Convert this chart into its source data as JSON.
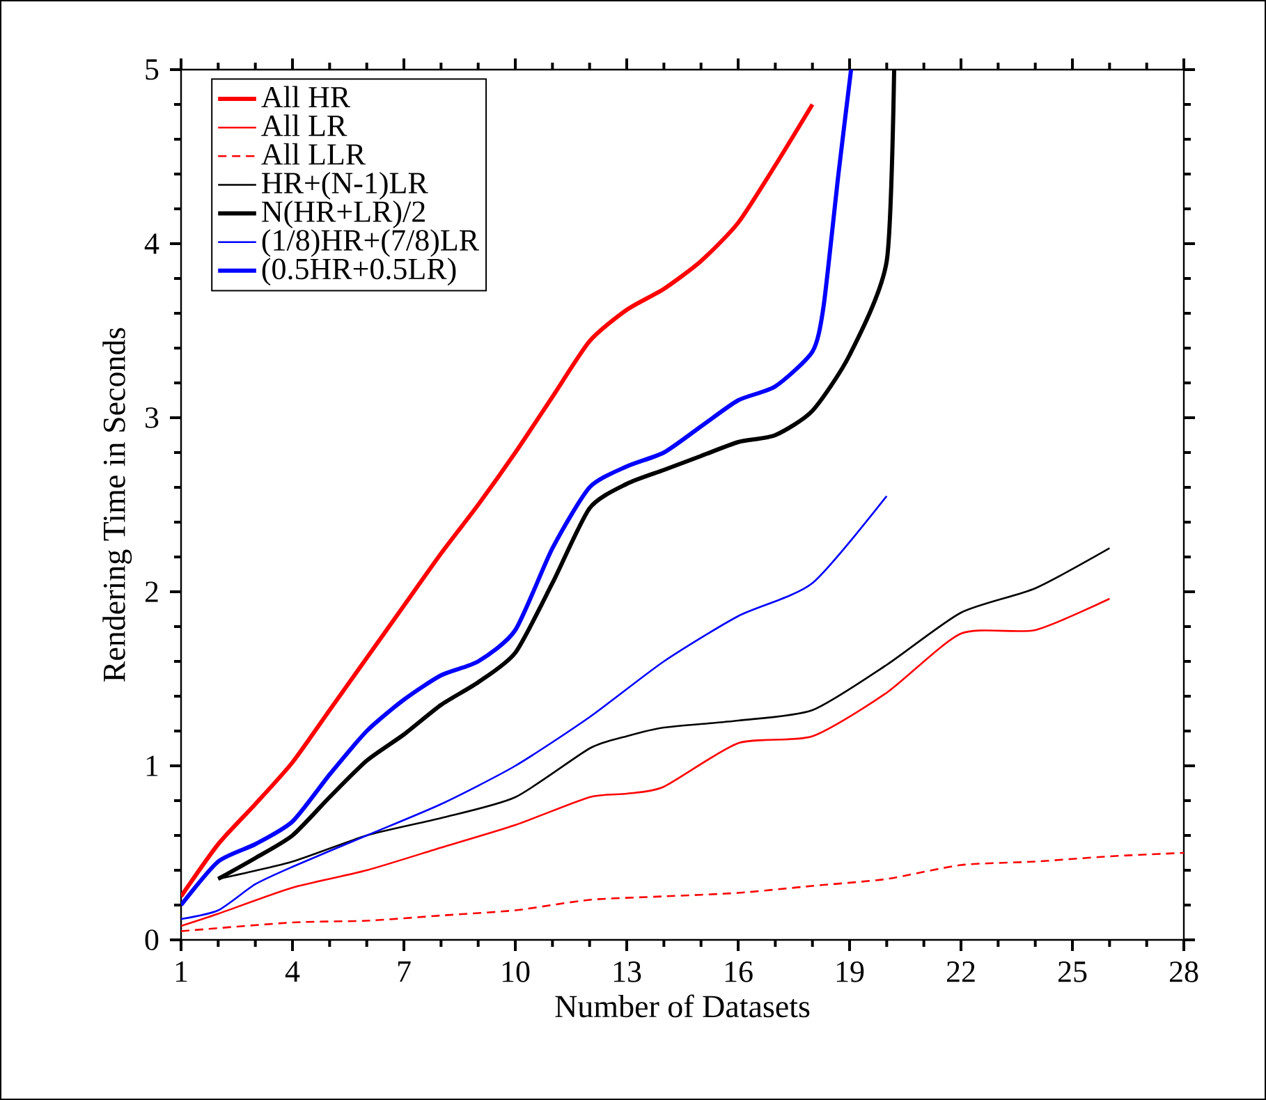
{
  "chart_data": {
    "type": "line",
    "xlabel": "Number of Datasets",
    "ylabel": "Rendering Time in Seconds",
    "xlim": [
      1,
      28
    ],
    "ylim": [
      0,
      5
    ],
    "xticks": [
      1,
      4,
      7,
      10,
      13,
      16,
      19,
      22,
      25,
      28
    ],
    "yticks": [
      0,
      1,
      2,
      3,
      4,
      5
    ],
    "legend": "top left",
    "series": [
      {
        "name": "All HR",
        "color": "#ff0000",
        "line_style": "solid",
        "x": [
          1,
          2,
          3,
          4,
          5,
          6,
          7,
          8,
          9,
          10,
          11,
          12,
          13,
          14,
          15,
          16,
          17,
          18
        ],
        "values": [
          0.25,
          0.55,
          0.78,
          1.02,
          1.32,
          1.62,
          1.92,
          2.22,
          2.5,
          2.8,
          3.12,
          3.44,
          3.62,
          3.74,
          3.9,
          4.12,
          4.45,
          4.8
        ]
      },
      {
        "name": "All LR",
        "color": "#ff0000",
        "line_style": "solid",
        "x": [
          1,
          2,
          4,
          6,
          8,
          10,
          12,
          13,
          14,
          16,
          18,
          20,
          22,
          24,
          26
        ],
        "values": [
          0.08,
          0.15,
          0.3,
          0.4,
          0.53,
          0.66,
          0.82,
          0.84,
          0.88,
          1.13,
          1.17,
          1.42,
          1.76,
          1.78,
          1.96
        ]
      },
      {
        "name": "All LLR",
        "color": "#ff0000",
        "line_style": "dashed",
        "x": [
          1,
          4,
          6,
          8,
          10,
          12,
          14,
          16,
          18,
          20,
          22,
          24,
          26,
          28
        ],
        "values": [
          0.05,
          0.1,
          0.11,
          0.14,
          0.17,
          0.23,
          0.25,
          0.27,
          0.31,
          0.35,
          0.43,
          0.45,
          0.48,
          0.5
        ]
      },
      {
        "name": "HR+(N-1)LR",
        "color": "#000000",
        "line_style": "solid",
        "x": [
          2,
          4,
          6,
          8,
          10,
          12,
          13,
          14,
          16,
          18,
          20,
          22,
          24,
          26
        ],
        "values": [
          0.35,
          0.45,
          0.6,
          0.7,
          0.82,
          1.1,
          1.17,
          1.22,
          1.26,
          1.32,
          1.58,
          1.88,
          2.02,
          2.25
        ]
      },
      {
        "name": "N(HR+LR)/2",
        "color": "#000000",
        "line_style": "solid",
        "x": [
          2,
          3,
          4,
          5,
          6,
          7,
          8,
          9,
          10,
          11,
          12,
          13,
          14,
          15,
          16,
          17,
          18,
          19,
          20,
          20.2
        ],
        "values": [
          0.35,
          0.47,
          0.6,
          0.82,
          1.03,
          1.18,
          1.35,
          1.48,
          1.65,
          2.05,
          2.48,
          2.62,
          2.7,
          2.78,
          2.86,
          2.9,
          3.04,
          3.36,
          3.9,
          5
        ]
      },
      {
        "name": "(1/8)HR+(7/8)LR",
        "color": "#0000ff",
        "line_style": "solid",
        "x": [
          1,
          2,
          3,
          4,
          6,
          8,
          10,
          12,
          14,
          16,
          18,
          20
        ],
        "values": [
          0.12,
          0.17,
          0.32,
          0.42,
          0.6,
          0.78,
          1.0,
          1.28,
          1.6,
          1.86,
          2.05,
          2.55
        ]
      },
      {
        "name": "(0.5HR+0.5LR)",
        "color": "#0000ff",
        "line_style": "solid",
        "x": [
          1,
          2,
          3,
          4,
          5,
          6,
          7,
          8,
          9,
          10,
          11,
          12,
          13,
          14,
          15,
          16,
          17,
          18,
          18.3,
          18.7,
          19.04
        ],
        "values": [
          0.2,
          0.45,
          0.55,
          0.68,
          0.95,
          1.2,
          1.38,
          1.52,
          1.6,
          1.78,
          2.25,
          2.6,
          2.72,
          2.8,
          2.95,
          3.1,
          3.18,
          3.38,
          3.64,
          4.4,
          5
        ]
      }
    ]
  }
}
